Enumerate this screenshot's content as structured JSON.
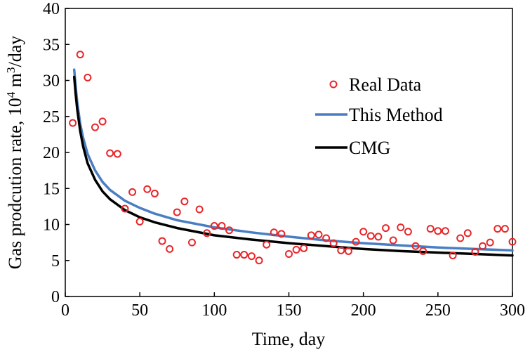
{
  "chart_data": {
    "type": "scatter+line",
    "title": "",
    "xlabel": "Time, day",
    "ylabel": {
      "prefix": "Gas prodcution rate, 10",
      "sup1": "4",
      "mid": " m",
      "sup2": "3",
      "suffix": "/day"
    },
    "xlim": [
      0,
      300
    ],
    "ylim": [
      0,
      40
    ],
    "x_ticks": [
      "0",
      "50",
      "100",
      "150",
      "200",
      "250",
      "300"
    ],
    "y_ticks": [
      "0",
      "5",
      "10",
      "15",
      "20",
      "25",
      "30",
      "35",
      "40"
    ],
    "grid": false,
    "legend_position": "upper-right",
    "colors": {
      "real_data": "#e8262a",
      "this_method": "#4a7ec4",
      "cmg": "#000000"
    },
    "series": [
      {
        "name": "Real Data",
        "kind": "scatter",
        "points": [
          [
            5,
            24.1
          ],
          [
            10,
            33.6
          ],
          [
            15,
            30.4
          ],
          [
            20,
            23.5
          ],
          [
            25,
            24.3
          ],
          [
            30,
            19.9
          ],
          [
            35,
            19.8
          ],
          [
            40,
            12.2
          ],
          [
            45,
            14.5
          ],
          [
            50,
            10.4
          ],
          [
            55,
            14.9
          ],
          [
            60,
            14.3
          ],
          [
            65,
            7.7
          ],
          [
            70,
            6.6
          ],
          [
            75,
            11.7
          ],
          [
            80,
            13.2
          ],
          [
            85,
            7.5
          ],
          [
            90,
            12.1
          ],
          [
            95,
            8.8
          ],
          [
            100,
            9.8
          ],
          [
            105,
            9.8
          ],
          [
            110,
            9.2
          ],
          [
            115,
            5.8
          ],
          [
            120,
            5.8
          ],
          [
            125,
            5.6
          ],
          [
            130,
            5.0
          ],
          [
            135,
            7.2
          ],
          [
            140,
            8.9
          ],
          [
            145,
            8.7
          ],
          [
            150,
            5.9
          ],
          [
            155,
            6.5
          ],
          [
            160,
            6.7
          ],
          [
            165,
            8.5
          ],
          [
            170,
            8.6
          ],
          [
            175,
            8.1
          ],
          [
            180,
            7.4
          ],
          [
            185,
            6.4
          ],
          [
            190,
            6.3
          ],
          [
            195,
            7.6
          ],
          [
            200,
            9.0
          ],
          [
            205,
            8.4
          ],
          [
            210,
            8.3
          ],
          [
            215,
            9.5
          ],
          [
            220,
            7.8
          ],
          [
            225,
            9.6
          ],
          [
            230,
            9.0
          ],
          [
            235,
            7.0
          ],
          [
            240,
            6.3
          ],
          [
            245,
            9.4
          ],
          [
            250,
            9.1
          ],
          [
            255,
            9.1
          ],
          [
            260,
            5.7
          ],
          [
            265,
            8.1
          ],
          [
            270,
            8.8
          ],
          [
            275,
            6.2
          ],
          [
            280,
            7.0
          ],
          [
            285,
            7.5
          ],
          [
            290,
            9.4
          ],
          [
            295,
            9.4
          ],
          [
            300,
            7.6
          ]
        ]
      },
      {
        "name": "This Method",
        "kind": "line",
        "points": [
          [
            6,
            31.5
          ],
          [
            7,
            29.0
          ],
          [
            8,
            27.0
          ],
          [
            10,
            24.0
          ],
          [
            12,
            22.0
          ],
          [
            15,
            19.8
          ],
          [
            20,
            17.5
          ],
          [
            25,
            15.9
          ],
          [
            30,
            14.8
          ],
          [
            40,
            13.3
          ],
          [
            50,
            12.3
          ],
          [
            60,
            11.5
          ],
          [
            75,
            10.6
          ],
          [
            100,
            9.6
          ],
          [
            125,
            8.9
          ],
          [
            150,
            8.3
          ],
          [
            175,
            7.8
          ],
          [
            200,
            7.4
          ],
          [
            225,
            7.1
          ],
          [
            250,
            6.8
          ],
          [
            275,
            6.6
          ],
          [
            300,
            6.4
          ]
        ]
      },
      {
        "name": "CMG",
        "kind": "line",
        "points": [
          [
            6,
            30.5
          ],
          [
            7,
            28.0
          ],
          [
            8,
            26.0
          ],
          [
            10,
            23.0
          ],
          [
            12,
            20.8
          ],
          [
            15,
            18.5
          ],
          [
            20,
            16.2
          ],
          [
            25,
            14.6
          ],
          [
            30,
            13.5
          ],
          [
            40,
            12.0
          ],
          [
            50,
            11.0
          ],
          [
            60,
            10.3
          ],
          [
            75,
            9.5
          ],
          [
            100,
            8.5
          ],
          [
            125,
            7.9
          ],
          [
            150,
            7.4
          ],
          [
            175,
            7.0
          ],
          [
            200,
            6.6
          ],
          [
            225,
            6.3
          ],
          [
            250,
            6.1
          ],
          [
            275,
            5.9
          ],
          [
            300,
            5.7
          ]
        ]
      }
    ]
  }
}
